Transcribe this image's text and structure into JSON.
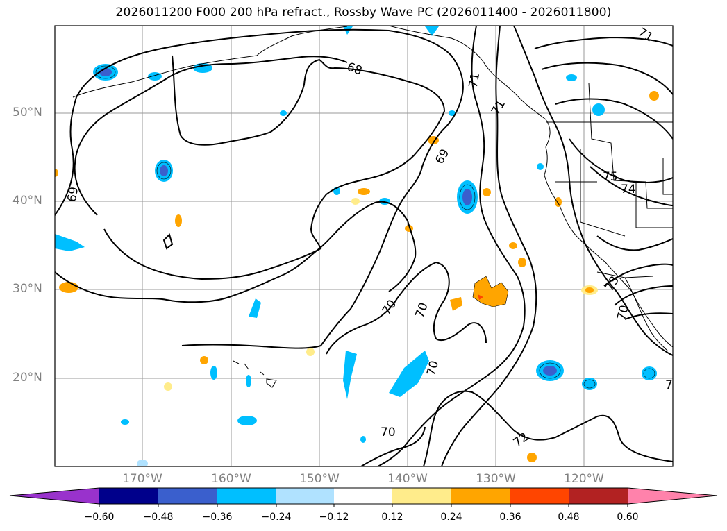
{
  "title": "2026011200 F000 200 hPa refract., Rossby Wave PC (2026011400 - 2026011800)",
  "map": {
    "lat_labels": [
      "50°N",
      "40°N",
      "30°N",
      "20°N"
    ],
    "lon_labels": [
      "170°W",
      "160°W",
      "150°W",
      "140°W",
      "130°W",
      "120°W"
    ],
    "contour_labels": [
      "68",
      "69",
      "69",
      "70",
      "70",
      "70",
      "70",
      "71",
      "71",
      "72",
      "73",
      "74",
      "75",
      "70",
      "7"
    ]
  },
  "colorbar": {
    "ticks": [
      "−0.60",
      "−0.48",
      "−0.36",
      "−0.24",
      "−0.12",
      "0.12",
      "0.24",
      "0.36",
      "0.48",
      "0.60"
    ],
    "colors": [
      "#9932cc",
      "#00008b",
      "#3a5fcd",
      "#00bfff",
      "#b0e2ff",
      "#ffffff",
      "#ffec8b",
      "#ffa500",
      "#ff4500",
      "#b22222",
      "#ff82ab"
    ]
  }
}
